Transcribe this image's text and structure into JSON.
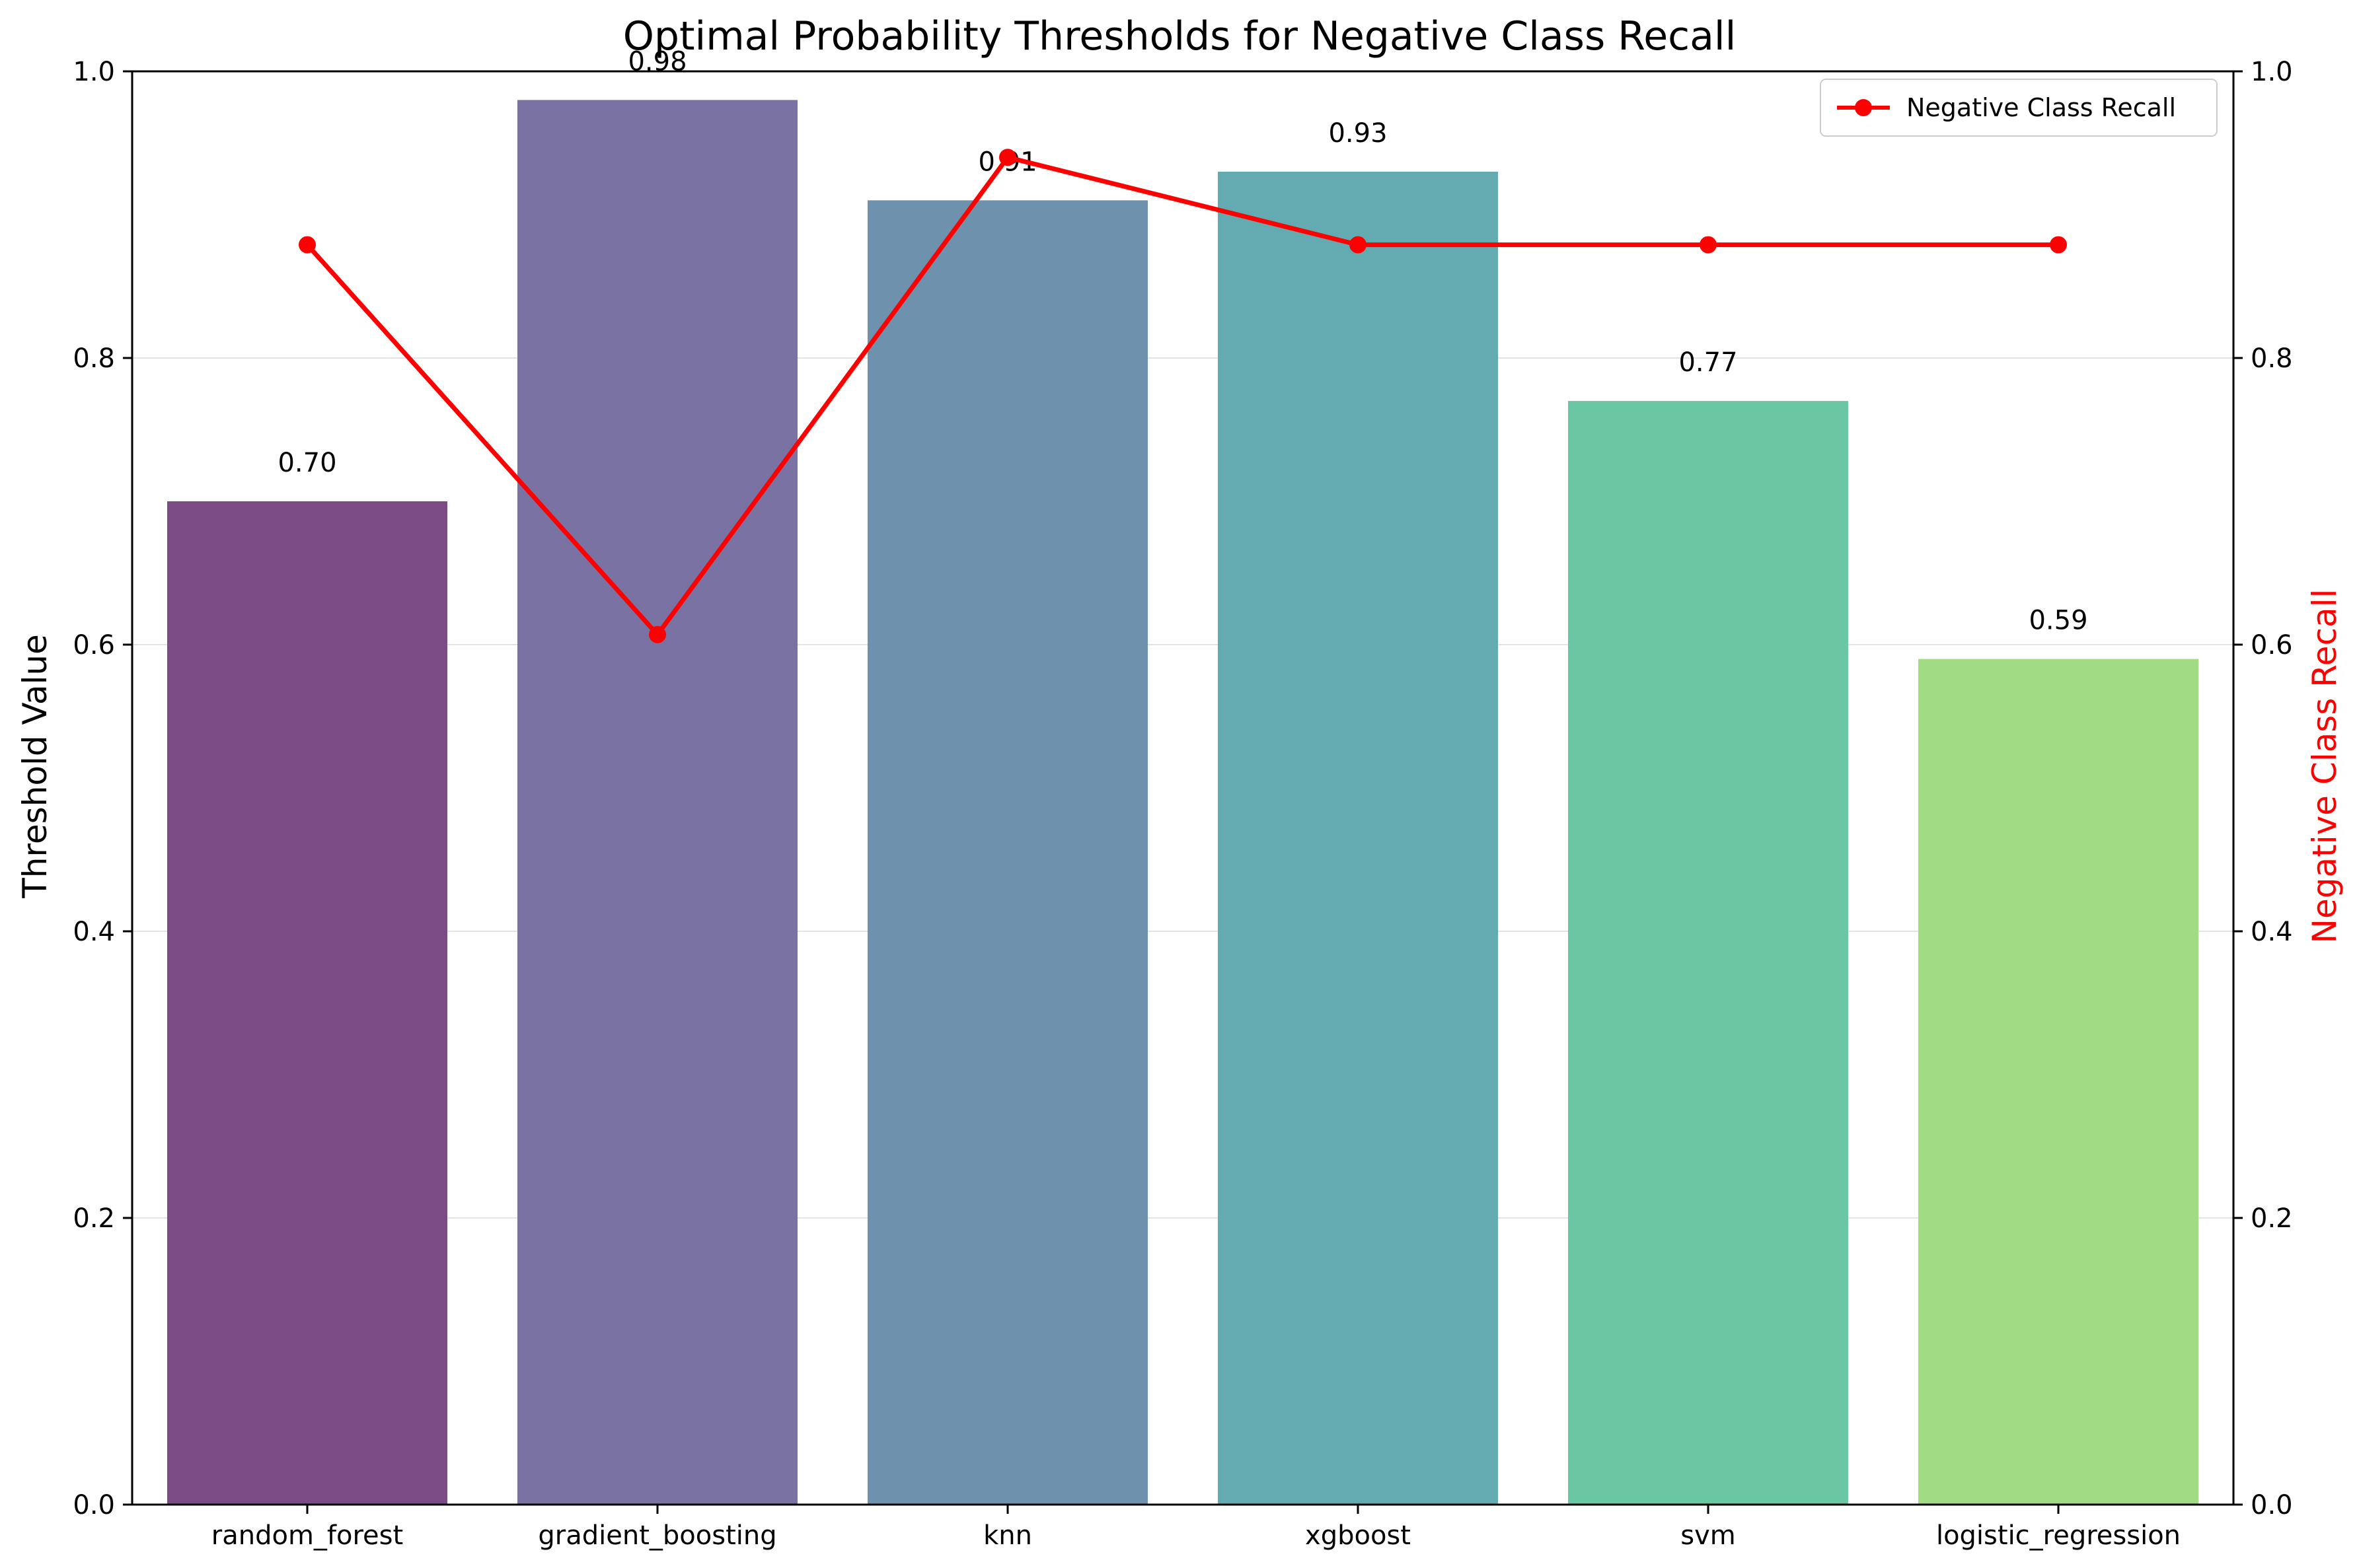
{
  "chart_data": {
    "type": "bar",
    "title": "Optimal Probability Thresholds for Negative Class Recall",
    "categories": [
      "random_forest",
      "gradient_boosting",
      "knn",
      "xgboost",
      "svm",
      "logistic_regression"
    ],
    "series": [
      {
        "name": "",
        "type": "bar",
        "axis": "left",
        "values": [
          0.7,
          0.98,
          0.91,
          0.93,
          0.77,
          0.59
        ],
        "data_labels": [
          "0.70",
          "0.98",
          "0.91",
          "0.93",
          "0.77",
          "0.59"
        ],
        "colors": [
          "#7a4b84",
          "#7b72a4",
          "#6e92ad",
          "#63aab1",
          "#6ac6a3",
          "#a1db83"
        ]
      },
      {
        "name": "Negative Class Recall",
        "type": "line",
        "axis": "right",
        "values": [
          0.879,
          0.607,
          0.94,
          0.879,
          0.879,
          0.879
        ],
        "color": "#ff0000"
      }
    ],
    "ylabel": "Threshold Value",
    "y2label": "Negative Class Recall",
    "ylim": [
      0,
      1
    ],
    "y2lim": [
      0,
      1
    ],
    "yticks": [
      "0.0",
      "0.2",
      "0.4",
      "0.6",
      "0.8",
      "1.0"
    ],
    "y2ticks": [
      "0.0",
      "0.2",
      "0.4",
      "0.6",
      "0.8",
      "1.0"
    ],
    "grid": "y",
    "legend": "top-right"
  }
}
